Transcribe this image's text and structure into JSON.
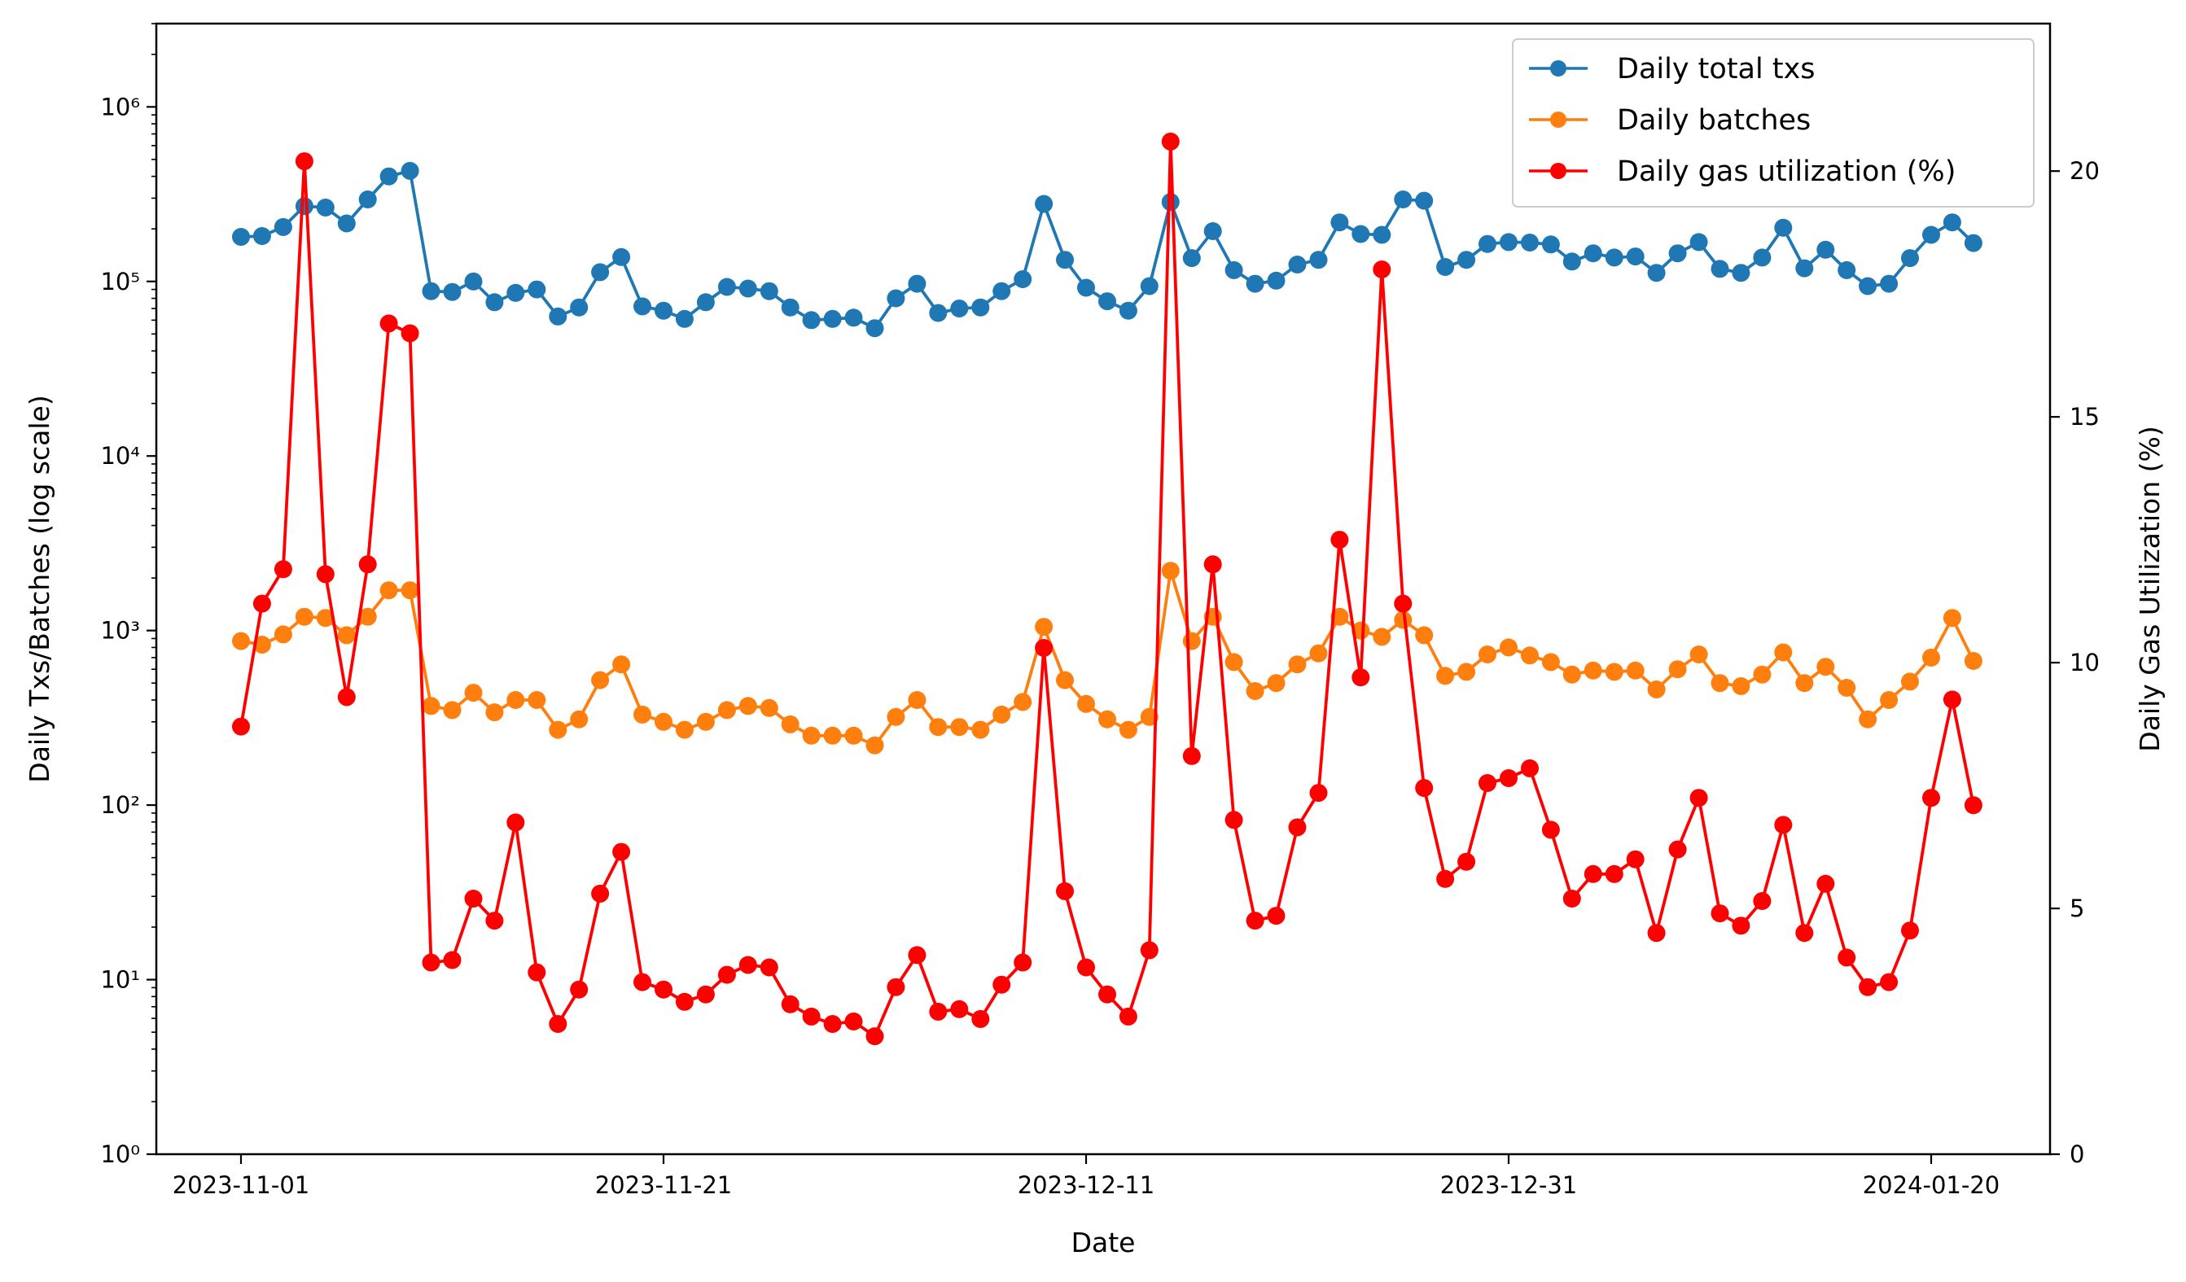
{
  "chart_data": {
    "type": "line",
    "xlabel": "Date",
    "ylabel_left": "Daily Txs/Batches (log scale)",
    "ylabel_right": "Daily Gas Utilization (%)",
    "x_start": "2023-11-01",
    "x_tick_labels": [
      "2023-11-01",
      "2023-11-21",
      "2023-12-11",
      "2023-12-31",
      "2024-01-20"
    ],
    "left_axis": {
      "scale": "log",
      "ylim": [
        1,
        3000000
      ],
      "tick_labels": [
        "10⁰",
        "10¹",
        "10²",
        "10³",
        "10⁴",
        "10⁵",
        "10⁶"
      ]
    },
    "right_axis": {
      "scale": "linear",
      "ylim": [
        0,
        23
      ],
      "tick_values": [
        0,
        5,
        10,
        15,
        20
      ]
    },
    "legend_position": "top-right",
    "colors": {
      "total_txs": "#1f77b4",
      "batches": "#ff7f0e",
      "gas": "#ff0000"
    },
    "series": [
      {
        "name": "Daily total txs",
        "axis": "left",
        "values": [
          180000,
          182000,
          205000,
          270000,
          265000,
          215000,
          295000,
          400000,
          430000,
          88000,
          87000,
          100000,
          76000,
          86000,
          90000,
          63000,
          71000,
          113000,
          138000,
          72000,
          68000,
          61000,
          76000,
          93000,
          91000,
          88000,
          71000,
          60000,
          61000,
          62000,
          54000,
          80000,
          97000,
          66000,
          70000,
          71000,
          88000,
          103000,
          278000,
          133000,
          92000,
          77000,
          68000,
          94000,
          285000,
          136000,
          194000,
          116000,
          97000,
          101000,
          125000,
          133000,
          218000,
          187000,
          185000,
          295000,
          290000,
          121000,
          133000,
          164000,
          168000,
          167000,
          163000,
          130000,
          145000,
          137000,
          139000,
          112000,
          145000,
          168000,
          118000,
          112000,
          137000,
          203000,
          119000,
          152000,
          116000,
          94000,
          97000,
          136000,
          185000,
          218000,
          166000
        ]
      },
      {
        "name": "Daily batches",
        "axis": "left",
        "values": [
          870,
          830,
          950,
          1200,
          1180,
          940,
          1200,
          1700,
          1700,
          370,
          350,
          440,
          340,
          400,
          400,
          270,
          310,
          520,
          640,
          330,
          300,
          270,
          300,
          350,
          370,
          360,
          290,
          250,
          250,
          250,
          220,
          320,
          400,
          280,
          280,
          270,
          330,
          390,
          1050,
          520,
          380,
          310,
          270,
          320,
          2200,
          870,
          1200,
          660,
          450,
          500,
          640,
          740,
          1200,
          1000,
          920,
          1150,
          940,
          550,
          580,
          730,
          800,
          720,
          660,
          560,
          590,
          580,
          590,
          460,
          600,
          730,
          500,
          480,
          560,
          750,
          500,
          620,
          470,
          310,
          400,
          510,
          700,
          1180,
          670
        ]
      },
      {
        "name": "Daily gas utilization (%)",
        "axis": "right",
        "values": [
          8.7,
          11.2,
          11.9,
          20.2,
          11.8,
          9.3,
          12.0,
          16.9,
          16.7,
          3.9,
          3.95,
          5.2,
          4.75,
          6.75,
          3.7,
          2.65,
          3.35,
          5.3,
          6.15,
          3.5,
          3.35,
          3.1,
          3.25,
          3.65,
          3.85,
          3.8,
          3.05,
          2.8,
          2.65,
          2.7,
          2.4,
          3.4,
          4.05,
          2.9,
          2.95,
          2.75,
          3.45,
          3.9,
          10.3,
          5.35,
          3.8,
          3.25,
          2.8,
          4.15,
          20.6,
          8.1,
          12.0,
          6.8,
          4.75,
          4.85,
          6.65,
          7.35,
          12.5,
          9.7,
          18.0,
          11.2,
          7.45,
          5.6,
          5.95,
          7.55,
          7.65,
          7.85,
          6.6,
          5.2,
          5.7,
          5.7,
          6.0,
          4.5,
          6.2,
          7.25,
          4.9,
          4.65,
          5.15,
          6.7,
          4.5,
          5.5,
          4.0,
          3.4,
          3.5,
          4.55,
          7.25,
          9.25,
          7.1
        ]
      }
    ]
  }
}
